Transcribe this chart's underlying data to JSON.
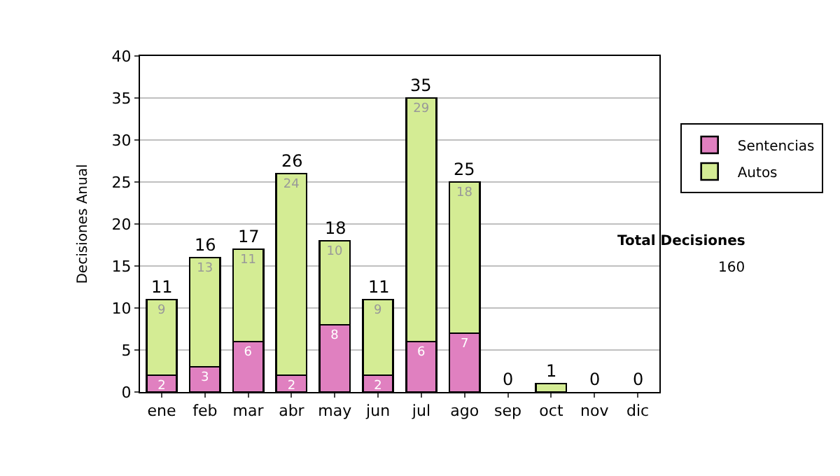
{
  "chart_data": {
    "type": "bar",
    "stacked": true,
    "ylabel": "Decisiones Anual",
    "categories": [
      "ene",
      "feb",
      "mar",
      "abr",
      "may",
      "jun",
      "jul",
      "ago",
      "sep",
      "oct",
      "nov",
      "dic"
    ],
    "series": [
      {
        "name": "Sentencias",
        "color": "#e080c0",
        "values": [
          2,
          3,
          6,
          2,
          8,
          2,
          6,
          7,
          0,
          0,
          0,
          0
        ],
        "value_labels": [
          "2",
          "3",
          "6",
          "2",
          "8",
          "2",
          "6",
          "7",
          null,
          null,
          null,
          null
        ]
      },
      {
        "name": "Autos",
        "color": "#d4ec94",
        "values": [
          9,
          13,
          11,
          24,
          10,
          9,
          29,
          18,
          0,
          1,
          0,
          0
        ],
        "value_labels": [
          "9",
          "13",
          "11",
          "24",
          "10",
          "9",
          "29",
          "18",
          null,
          null,
          null,
          null
        ]
      }
    ],
    "totals": [
      "11",
      "16",
      "17",
      "26",
      "18",
      "11",
      "35",
      "25",
      "0",
      "1",
      "0",
      "0"
    ],
    "ylim": [
      0,
      40
    ],
    "yticks": [
      0,
      5,
      10,
      15,
      20,
      25,
      30,
      35,
      40
    ],
    "grid": "y",
    "legend": "right",
    "annotations": [
      "Total Decisiones",
      "160"
    ]
  }
}
